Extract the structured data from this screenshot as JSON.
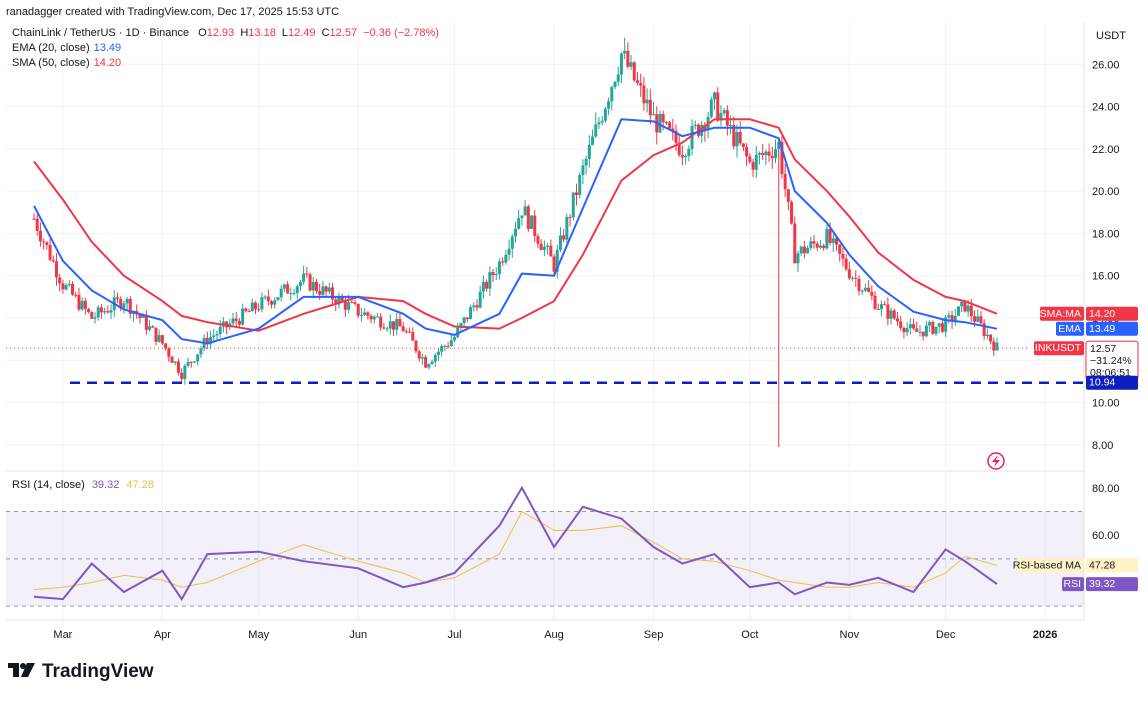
{
  "header": {
    "credit": "ranadagger created with TradingView.com, Dec 17, 2025 15:53 UTC"
  },
  "legend": {
    "symbol_line": "ChainLink / TetherUS · 1D · Binance",
    "ohlc": [
      {
        "k": "O",
        "v": "12.93"
      },
      {
        "k": "H",
        "v": "13.18"
      },
      {
        "k": "L",
        "v": "12.49"
      },
      {
        "k": "C",
        "v": "12.57"
      },
      {
        "k": "",
        "v": "−0.36 (−2.78%)"
      }
    ],
    "ema": {
      "label": "EMA (20, close)",
      "value": "13.49",
      "color": "#2962ff"
    },
    "sma": {
      "label": "SMA (50, close)",
      "value": "14.20",
      "color": "#f23645"
    }
  },
  "rsi_legend": {
    "label": "RSI (14, close)",
    "rsi": "39.32",
    "ma": "47.28",
    "rsi_color": "#7e57c2",
    "ma_color": "#e8c246"
  },
  "price_axis": {
    "unit": "USDT",
    "ticks": [
      "26.00",
      "24.00",
      "22.00",
      "20.00",
      "18.00",
      "16.00",
      "14.00",
      "12.00",
      "10.00",
      "8.00"
    ]
  },
  "rsi_axis": {
    "ticks": [
      "80.00",
      "60.00"
    ]
  },
  "time_axis": {
    "labels": [
      "Mar",
      "Apr",
      "May",
      "Jun",
      "Jul",
      "Aug",
      "Sep",
      "Oct",
      "Nov",
      "Dec",
      "2026"
    ]
  },
  "price_tags": {
    "sma": {
      "label": "SMA:MA",
      "value": "14.20"
    },
    "ema": {
      "label": "EMA",
      "value": "13.49"
    },
    "last": {
      "label": "LINKUSDT",
      "value": "12.57",
      "change": "−31.24%",
      "countdown": "08:06:51"
    },
    "support": {
      "value": "10.94"
    }
  },
  "rsi_tags": {
    "ma": {
      "label": "RSI-based MA",
      "value": "47.28"
    },
    "rsi": {
      "label": "RSI",
      "value": "39.32"
    }
  },
  "brand": {
    "name": "TradingView"
  },
  "colors": {
    "up": "#26a69a",
    "down": "#f23645",
    "ema": "#2962ff",
    "sma": "#f23645",
    "rsi": "#7e57c2",
    "rsi_ma": "#e8c246",
    "support": "#0d1fbf"
  },
  "chart_data": {
    "type": "line",
    "title": "ChainLink / TetherUS · 1D · Binance",
    "price_range": [
      7.0,
      28.0
    ],
    "rsi_range": [
      25,
      85
    ],
    "support_level": 10.94,
    "x": [
      "2025-02-20",
      "2025-03-01",
      "2025-03-10",
      "2025-03-20",
      "2025-04-01",
      "2025-04-07",
      "2025-04-15",
      "2025-05-01",
      "2025-05-15",
      "2025-06-01",
      "2025-06-15",
      "2025-06-22",
      "2025-07-01",
      "2025-07-15",
      "2025-07-22",
      "2025-08-01",
      "2025-08-10",
      "2025-08-22",
      "2025-09-01",
      "2025-09-10",
      "2025-09-20",
      "2025-10-01",
      "2025-10-10",
      "2025-10-15",
      "2025-10-25",
      "2025-11-01",
      "2025-11-10",
      "2025-11-21",
      "2025-12-01",
      "2025-12-07",
      "2025-12-17"
    ],
    "series": [
      {
        "name": "LINKUSDT",
        "values": [
          18.7,
          15.6,
          14.0,
          14.9,
          12.8,
          11.4,
          13.0,
          14.6,
          15.8,
          14.3,
          13.5,
          11.9,
          13.1,
          16.6,
          19.2,
          16.5,
          21.0,
          26.5,
          23.4,
          22.0,
          24.1,
          21.3,
          22.2,
          17.0,
          17.8,
          16.2,
          14.6,
          13.3,
          13.7,
          14.6,
          12.57
        ]
      },
      {
        "name": "EMA (20, close)",
        "values": [
          19.3,
          16.7,
          15.3,
          14.4,
          13.9,
          13.0,
          12.8,
          13.5,
          15.0,
          15.0,
          14.2,
          13.5,
          13.2,
          14.2,
          16.1,
          16.0,
          19.2,
          23.4,
          23.3,
          22.6,
          23.0,
          23.0,
          22.5,
          20.0,
          18.5,
          17.0,
          15.5,
          14.3,
          13.9,
          13.8,
          13.49
        ]
      },
      {
        "name": "SMA (50, close)",
        "values": [
          21.4,
          19.6,
          17.6,
          16.0,
          14.8,
          14.1,
          13.8,
          13.4,
          14.2,
          15.0,
          14.8,
          14.2,
          13.6,
          13.5,
          14.0,
          14.8,
          17.0,
          20.5,
          21.7,
          22.3,
          23.4,
          23.4,
          23.0,
          21.5,
          20.0,
          18.8,
          17.1,
          15.8,
          15.0,
          14.8,
          14.2
        ]
      },
      {
        "name": "RSI (14, close)",
        "values": [
          34,
          33,
          48,
          36,
          45,
          33,
          52,
          53,
          49,
          46,
          38,
          40,
          44,
          64,
          80,
          55,
          72,
          67,
          55,
          48,
          52,
          38,
          40,
          35,
          40,
          39,
          42,
          36,
          54,
          49,
          39.32
        ]
      },
      {
        "name": "RSI-based MA",
        "values": [
          37,
          38,
          40,
          43,
          41,
          38,
          40,
          49,
          56,
          49,
          44,
          40,
          42,
          52,
          70,
          62,
          62,
          64,
          57,
          50,
          49,
          45,
          41,
          40,
          38,
          38,
          40,
          38,
          44,
          51,
          47.28
        ]
      }
    ]
  }
}
